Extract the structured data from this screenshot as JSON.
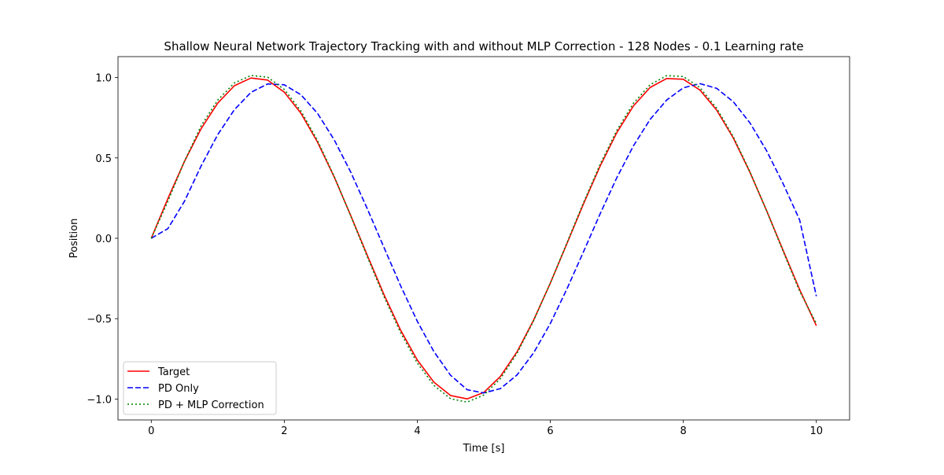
{
  "chart_data": {
    "type": "line",
    "title": "Shallow Neural Network Trajectory Tracking with and without MLP Correction - 128 Nodes - 0.1 Learning rate",
    "xlabel": "Time [s]",
    "ylabel": "Position",
    "xlim": [
      -0.5,
      10.5
    ],
    "ylim": [
      -1.13,
      1.13
    ],
    "xticks": [
      0,
      2,
      4,
      6,
      8,
      10
    ],
    "xtick_labels": [
      "0",
      "2",
      "4",
      "6",
      "8",
      "10"
    ],
    "yticks": [
      -1.0,
      -0.5,
      0.0,
      0.5,
      1.0
    ],
    "ytick_labels": [
      "−1.0",
      "−0.5",
      "0.0",
      "0.5",
      "1.0"
    ],
    "grid": false,
    "legend_position": "lower-left",
    "series": [
      {
        "name": "Target",
        "color": "#ff0000",
        "style": "solid",
        "x": [
          0,
          0.25,
          0.5,
          0.75,
          1.0,
          1.25,
          1.5,
          1.75,
          2.0,
          2.25,
          2.5,
          2.75,
          3.0,
          3.25,
          3.5,
          3.75,
          4.0,
          4.25,
          4.5,
          4.75,
          5.0,
          5.25,
          5.5,
          5.75,
          6.0,
          6.25,
          6.5,
          6.75,
          7.0,
          7.25,
          7.5,
          7.75,
          8.0,
          8.25,
          8.5,
          8.75,
          9.0,
          9.25,
          9.5,
          9.75,
          10.0
        ],
        "y": [
          0.0,
          0.247,
          0.479,
          0.682,
          0.841,
          0.949,
          0.997,
          0.984,
          0.909,
          0.778,
          0.598,
          0.382,
          0.141,
          -0.108,
          -0.351,
          -0.572,
          -0.757,
          -0.895,
          -0.978,
          -0.999,
          -0.959,
          -0.859,
          -0.706,
          -0.508,
          -0.279,
          -0.033,
          0.215,
          0.45,
          0.657,
          0.823,
          0.938,
          0.994,
          0.989,
          0.922,
          0.798,
          0.625,
          0.412,
          0.174,
          -0.075,
          -0.32,
          -0.544
        ]
      },
      {
        "name": "PD Only",
        "color": "#0000ff",
        "style": "dashed",
        "x": [
          0,
          0.25,
          0.5,
          0.75,
          1.0,
          1.25,
          1.5,
          1.75,
          2.0,
          2.25,
          2.5,
          2.75,
          3.0,
          3.25,
          3.5,
          3.75,
          4.0,
          4.25,
          4.5,
          4.75,
          5.0,
          5.25,
          5.5,
          5.75,
          6.0,
          6.25,
          6.5,
          6.75,
          7.0,
          7.25,
          7.5,
          7.75,
          8.0,
          8.25,
          8.5,
          8.75,
          9.0,
          9.25,
          9.5,
          9.75,
          10.0
        ],
        "y": [
          0.0,
          0.06,
          0.231,
          0.45,
          0.645,
          0.8,
          0.908,
          0.96,
          0.955,
          0.893,
          0.777,
          0.613,
          0.411,
          0.182,
          -0.058,
          -0.296,
          -0.516,
          -0.705,
          -0.852,
          -0.942,
          -0.962,
          -0.935,
          -0.85,
          -0.712,
          -0.53,
          -0.315,
          -0.083,
          0.153,
          0.377,
          0.575,
          0.739,
          0.86,
          0.936,
          0.962,
          0.933,
          0.85,
          0.719,
          0.546,
          0.34,
          0.113,
          -0.36
        ]
      },
      {
        "name": "PD + MLP Correction",
        "color": "#008000",
        "style": "dotted",
        "x": [
          0,
          0.25,
          0.5,
          0.75,
          1.0,
          1.25,
          1.5,
          1.75,
          2.0,
          2.25,
          2.5,
          2.75,
          3.0,
          3.25,
          3.5,
          3.75,
          4.0,
          4.25,
          4.5,
          4.75,
          5.0,
          5.25,
          5.5,
          5.75,
          6.0,
          6.25,
          6.5,
          6.75,
          7.0,
          7.25,
          7.5,
          7.75,
          8.0,
          8.25,
          8.5,
          8.75,
          9.0,
          9.25,
          9.5,
          9.75,
          10.0
        ],
        "y": [
          0.0,
          0.23,
          0.48,
          0.7,
          0.86,
          0.966,
          1.013,
          1.002,
          0.926,
          0.792,
          0.608,
          0.386,
          0.138,
          -0.117,
          -0.364,
          -0.588,
          -0.776,
          -0.915,
          -0.998,
          -1.019,
          -0.975,
          -0.873,
          -0.715,
          -0.512,
          -0.279,
          -0.028,
          0.223,
          0.461,
          0.671,
          0.84,
          0.955,
          1.012,
          1.006,
          0.937,
          0.81,
          0.633,
          0.416,
          0.173,
          -0.081,
          -0.33,
          -0.53
        ]
      }
    ]
  }
}
